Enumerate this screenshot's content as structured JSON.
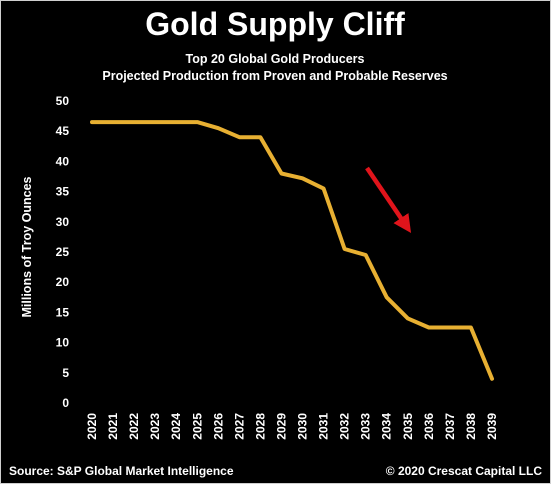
{
  "chart_data": {
    "type": "line",
    "title": "Gold Supply Cliff",
    "subtitle_line1": "Top 20 Global Gold Producers",
    "subtitle_line2": "Projected Production from Proven and Probable Reserves",
    "ylabel": "Millions of Troy Ounces",
    "xlabel": "",
    "ylim": [
      0,
      50
    ],
    "yticks": [
      0,
      5,
      10,
      15,
      20,
      25,
      30,
      35,
      40,
      45,
      50
    ],
    "x": [
      "2020",
      "2021",
      "2022",
      "2023",
      "2024",
      "2025",
      "2026",
      "2027",
      "2028",
      "2029",
      "2030",
      "2031",
      "2032",
      "2033",
      "2034",
      "2035",
      "2036",
      "2037",
      "2038",
      "2039"
    ],
    "series": [
      {
        "values": [
          46.5,
          46.5,
          46.5,
          46.5,
          46.5,
          46.5,
          45.5,
          44,
          44,
          38,
          37.2,
          35.5,
          25.5,
          24.5,
          17.5,
          14,
          12.5,
          12.5,
          12.5,
          4
        ]
      }
    ],
    "line_color": "#E8B032",
    "annotation": "red-down-right-arrow",
    "annotation_color": "#E0141B",
    "grid": false,
    "legend": "none"
  },
  "footer": {
    "source": "Source: S&P Global Market Intelligence",
    "copyright": "© 2020 Crescat Capital LLC"
  },
  "colors": {
    "background": "#000000",
    "text": "#ffffff"
  }
}
